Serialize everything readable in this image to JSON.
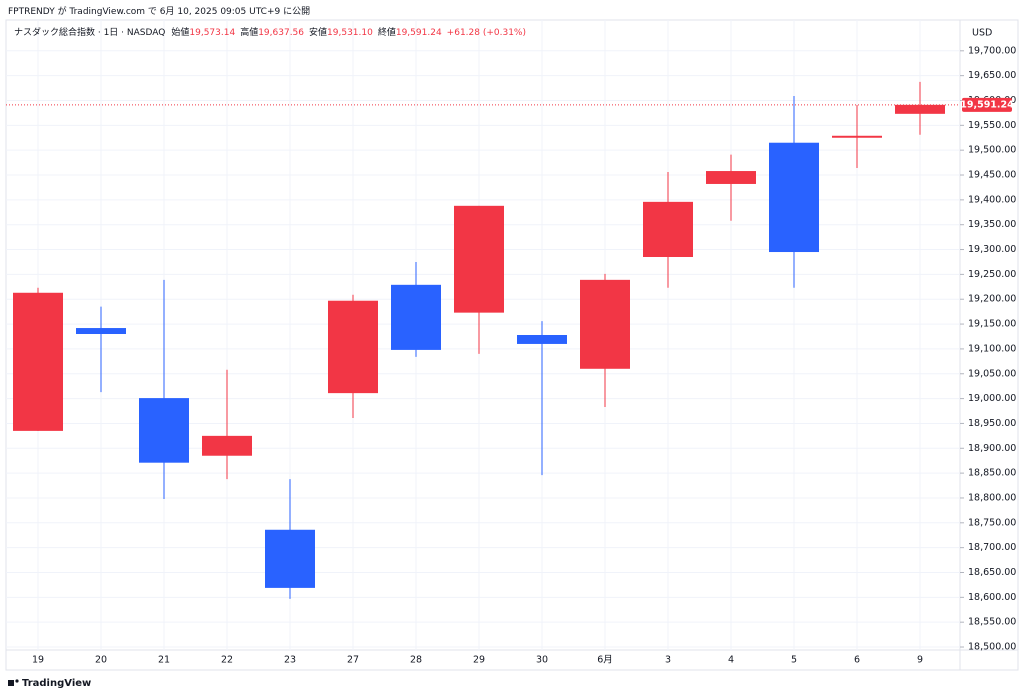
{
  "header": "FPTRENDY が TradingView.com で 6月 10, 2025 09:05 UTC+9 に公開",
  "watermark": "TradingView",
  "chart_data": {
    "type": "candlestick",
    "title": "ナスダック総合指数 · 1日 · NASDAQ",
    "legend_fields": [
      {
        "label": "始値",
        "value": "19,573.14"
      },
      {
        "label": "高値",
        "value": "19,637.56"
      },
      {
        "label": "安値",
        "value": "19,531.10"
      },
      {
        "label": "終値",
        "value": "19,591.24"
      }
    ],
    "change": "+61.28 (+0.31%)",
    "currency": "USD",
    "categories": [
      "19",
      "20",
      "21",
      "22",
      "23",
      "27",
      "28",
      "29",
      "30",
      "6月",
      "3",
      "4",
      "5",
      "6",
      "9"
    ],
    "open": [
      18935,
      19142,
      19001,
      18885,
      18736,
      19011,
      19229,
      19173,
      19128,
      19060,
      19285,
      19432,
      19515,
      19525,
      19573.14
    ],
    "high": [
      19223,
      19185,
      19239,
      19058,
      18838,
      19209,
      19275,
      19388,
      19156,
      19251,
      19456,
      19491,
      19609,
      19591,
      19637.56
    ],
    "low": [
      18935,
      19013,
      18798,
      18838,
      18597,
      18961,
      19084,
      19090,
      18846,
      18983,
      19223,
      19358,
      19223,
      19464,
      19531.1
    ],
    "close": [
      19213,
      19130,
      18871,
      18925,
      18619,
      19197,
      19098,
      19388,
      19110,
      19239,
      19396,
      19458,
      19295,
      19529,
      19591.24
    ],
    "up_color": "#f23645",
    "down_color": "#2962ff",
    "ylim": [
      18494,
      19762
    ],
    "yticks": [
      {
        "value": 18500,
        "label": "18,500.00"
      },
      {
        "value": 18550,
        "label": "18,550.00"
      },
      {
        "value": 18600,
        "label": "18,600.00"
      },
      {
        "value": 18650,
        "label": "18,650.00"
      },
      {
        "value": 18700,
        "label": "18,700.00"
      },
      {
        "value": 18750,
        "label": "18,750.00"
      },
      {
        "value": 18800,
        "label": "18,800.00"
      },
      {
        "value": 18850,
        "label": "18,850.00"
      },
      {
        "value": 18900,
        "label": "18,900.00"
      },
      {
        "value": 18950,
        "label": "18,950.00"
      },
      {
        "value": 19000,
        "label": "19,000.00"
      },
      {
        "value": 19050,
        "label": "19,050.00"
      },
      {
        "value": 19100,
        "label": "19,100.00"
      },
      {
        "value": 19150,
        "label": "19,150.00"
      },
      {
        "value": 19200,
        "label": "19,200.00"
      },
      {
        "value": 19250,
        "label": "19,250.00"
      },
      {
        "value": 19300,
        "label": "19,300.00"
      },
      {
        "value": 19350,
        "label": "19,350.00"
      },
      {
        "value": 19400,
        "label": "19,400.00"
      },
      {
        "value": 19450,
        "label": "19,450.00"
      },
      {
        "value": 19500,
        "label": "19,500.00"
      },
      {
        "value": 19550,
        "label": "19,550.00"
      },
      {
        "value": 19600,
        "label": "19,600.00"
      },
      {
        "value": 19650,
        "label": "19,650.00"
      },
      {
        "value": 19700,
        "label": "19,700.00"
      }
    ],
    "grid": true,
    "last_price": {
      "value": 19591.24,
      "label": "19,591.24"
    }
  }
}
